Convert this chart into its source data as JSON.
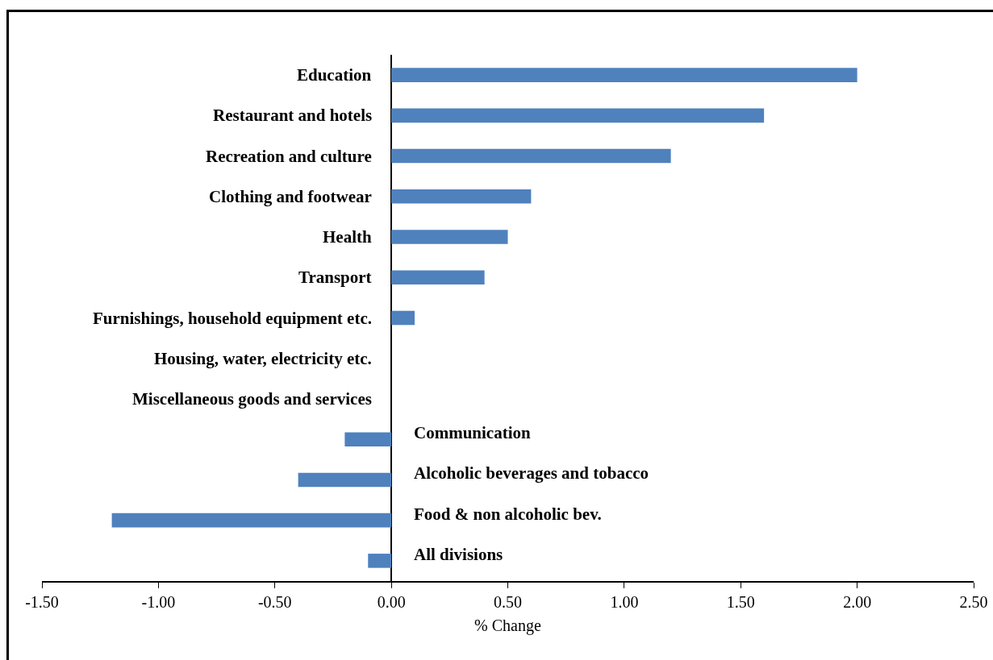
{
  "chart_data": {
    "type": "bar",
    "orientation": "horizontal",
    "xlabel": "% Change",
    "categories": [
      "Education",
      "Restaurant and hotels",
      "Recreation and culture",
      "Clothing and footwear",
      "Health",
      "Transport",
      "Furnishings, household equipment etc.",
      "Housing, water, electricity etc.",
      "Miscellaneous goods and services",
      "Communication",
      "Alcoholic beverages and tobacco",
      "Food & non alcoholic bev.",
      "All divisions"
    ],
    "values": [
      2.0,
      1.6,
      1.2,
      0.6,
      0.5,
      0.4,
      0.1,
      0,
      0,
      -0.2,
      -0.4,
      -1.2,
      -0.1
    ],
    "color": "#4f81bd",
    "xlim": [
      -1.5,
      2.5
    ],
    "xticks": [
      {
        "value": -1.5,
        "label": "-1.50"
      },
      {
        "value": -1,
        "label": "-1.00"
      },
      {
        "value": -0.5,
        "label": "-0.50"
      },
      {
        "value": 0,
        "label": "0.00"
      },
      {
        "value": 0.5,
        "label": "0.50"
      },
      {
        "value": 1,
        "label": "1.00"
      },
      {
        "value": 1.5,
        "label": "1.50"
      },
      {
        "value": 2,
        "label": "2.00"
      },
      {
        "value": 2.5,
        "label": "2.50"
      }
    ],
    "grid": false,
    "legend": false
  }
}
